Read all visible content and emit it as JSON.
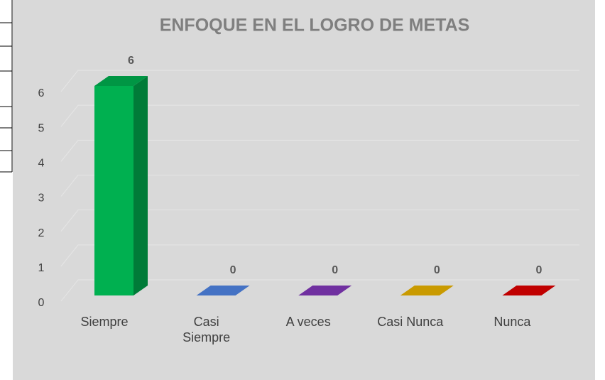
{
  "chart_data": {
    "type": "bar3d",
    "title": "ENFOQUE EN EL LOGRO DE METAS",
    "categories": [
      "Siempre",
      "Casi Siempre",
      "A veces",
      "Casi Nunca",
      "Nunca"
    ],
    "values": [
      6,
      0,
      0,
      0,
      0
    ],
    "colors": [
      "#00b050",
      "#4472c4",
      "#7030a0",
      "#c99a00",
      "#c00000"
    ],
    "ylim": [
      0,
      6
    ],
    "yticks": [
      0,
      1,
      2,
      3,
      4,
      5,
      6
    ],
    "grid": true
  }
}
